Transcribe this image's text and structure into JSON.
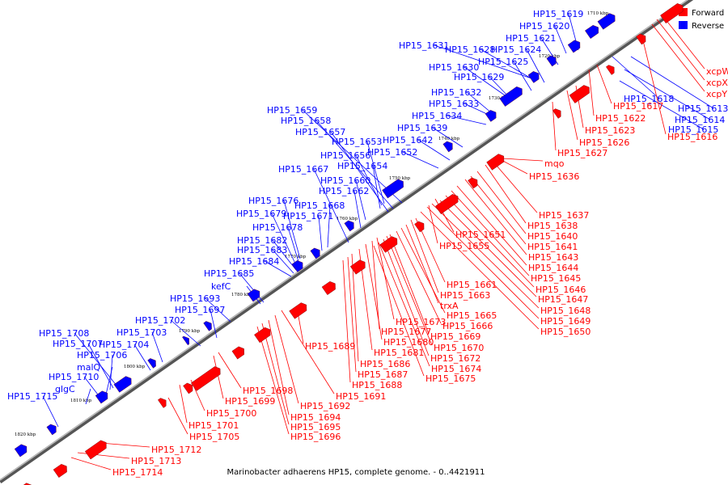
{
  "caption": "Marinobacter adhaerens HP15, complete genome. - 0..4421911",
  "legend": [
    {
      "label": "Forward",
      "color": "#ff0000"
    },
    {
      "label": "Reverse",
      "color": "#0000ff"
    }
  ],
  "colors": {
    "forward": "#ff0000",
    "reverse": "#0000ff",
    "backbone": "#888888"
  },
  "ticks": [
    "1710 kbp",
    "1720 kbp",
    "1730 kbp",
    "1740 kbp",
    "1750 kbp",
    "1760 kbp",
    "1770 kbp",
    "1780 kbp",
    "1790 kbp",
    "1800 kbp",
    "1810 kbp",
    "1820 kbp"
  ],
  "reverse_labels": [
    "HP15_1619",
    "HP15_1620",
    "HP15_1621",
    "HP15_1631",
    "HP15_1628",
    "HP15_1624",
    "HP15_1625",
    "HP15_1630",
    "HP15_1629",
    "HP15_1632",
    "HP15_1633",
    "HP15_1634",
    "HP15_1659",
    "HP15_1658",
    "HP15_1657",
    "HP15_1639",
    "HP15_1653",
    "HP15_1642",
    "HP15_1656",
    "HP15_1652",
    "HP15_1667",
    "HP15_1654",
    "HP15_1660",
    "HP15_1662",
    "HP15_1676",
    "HP15_1668",
    "HP15_1679",
    "HP15_1671",
    "HP15_1678",
    "HP15_1682",
    "HP15_1683",
    "HP15_1684",
    "HP15_1685",
    "kefC",
    "HP15_1693",
    "HP15_1697",
    "HP15_1702",
    "HP15_1708",
    "HP15_1703",
    "HP15_1707",
    "HP15_1704",
    "HP15_1706",
    "malQ",
    "HP15_1710",
    "glgC",
    "HP15_1715",
    "HP15_1618",
    "HP15_1613",
    "HP15_1614",
    "HP15_1615"
  ],
  "forward_labels": [
    "xcpW",
    "xcpX",
    "xcpY",
    "HP15_1617",
    "HP15_1622",
    "HP15_1616",
    "HP15_1623",
    "HP15_1626",
    "HP15_1627",
    "mqo",
    "HP15_1636",
    "HP15_1637",
    "HP15_1638",
    "HP15_1651",
    "HP15_1640",
    "HP15_1655",
    "HP15_1641",
    "HP15_1643",
    "HP15_1644",
    "HP15_1645",
    "HP15_1661",
    "HP15_1646",
    "HP15_1663",
    "HP15_1647",
    "trxA",
    "HP15_1648",
    "HP15_1665",
    "HP15_1649",
    "HP15_1673",
    "HP15_1666",
    "HP15_1650",
    "HP15_1677",
    "HP15_1669",
    "HP15_1680",
    "HP15_1689",
    "HP15_1670",
    "HP15_1681",
    "HP15_1672",
    "HP15_1686",
    "HP15_1674",
    "HP15_1687",
    "HP15_1675",
    "HP15_1688",
    "HP15_1691",
    "HP15_1698",
    "HP15_1692",
    "HP15_1699",
    "HP15_1694",
    "HP15_1700",
    "HP15_1695",
    "HP15_1701",
    "HP15_1696",
    "HP15_1705",
    "HP15_1712",
    "HP15_1713",
    "HP15_1714"
  ]
}
